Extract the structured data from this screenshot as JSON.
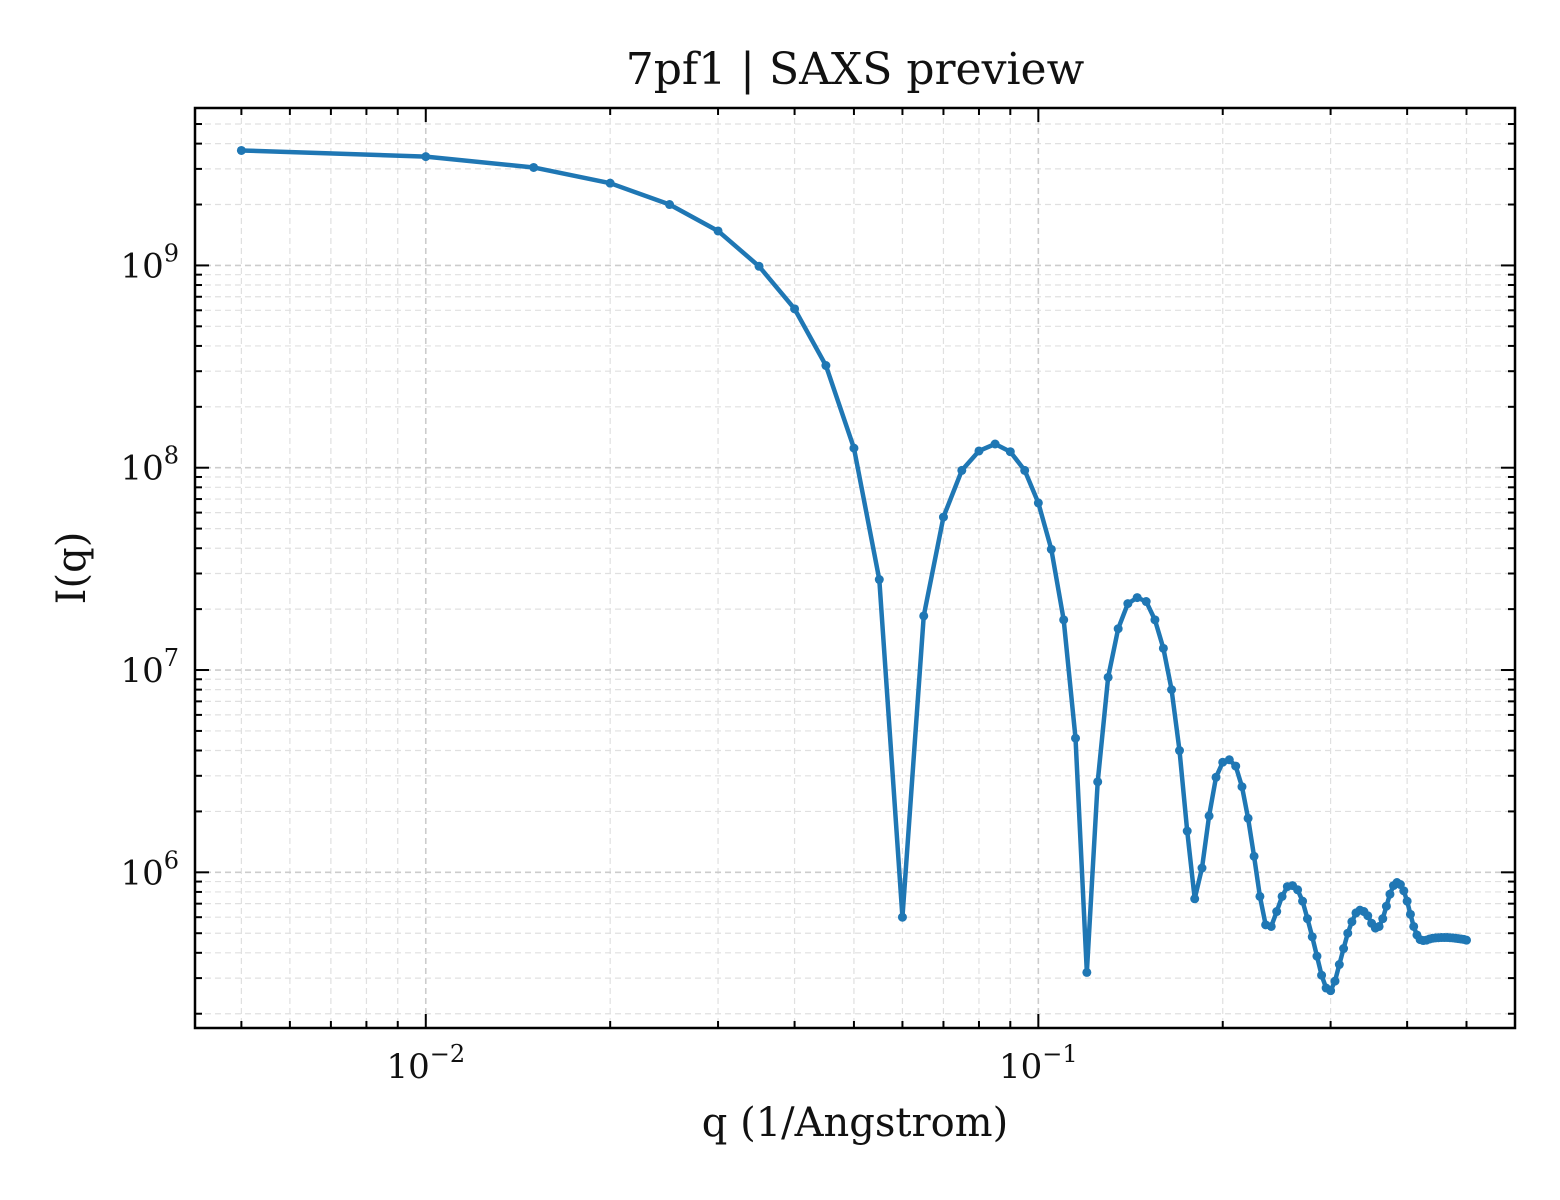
{
  "chart_data": {
    "type": "line",
    "title": "7pf1 | SAXS preview",
    "xlabel": "q (1/Angstrom)",
    "ylabel": "I(q)",
    "x_scale": "log",
    "y_scale": "log",
    "xlim": [
      0.0042,
      0.6
    ],
    "ylim": [
      170000,
      6000000000
    ],
    "grid": true,
    "color": "#1f77b4",
    "x_ticks": [
      {
        "value": 0.01,
        "base": "10",
        "exp": "−2"
      },
      {
        "value": 0.1,
        "base": "10",
        "exp": "−1"
      }
    ],
    "y_ticks": [
      {
        "value": 1000000,
        "base": "10",
        "exp": "6"
      },
      {
        "value": 10000000,
        "base": "10",
        "exp": "7"
      },
      {
        "value": 100000000,
        "base": "10",
        "exp": "8"
      },
      {
        "value": 1000000000,
        "base": "10",
        "exp": "9"
      }
    ],
    "series": [
      {
        "x": [
          0.005,
          0.01,
          0.015,
          0.02,
          0.025,
          0.03,
          0.035,
          0.04,
          0.045,
          0.05,
          0.055,
          0.06,
          0.065,
          0.07,
          0.075,
          0.08,
          0.085,
          0.09,
          0.095,
          0.1,
          0.105,
          0.11,
          0.115,
          0.12,
          0.125,
          0.13,
          0.135,
          0.14,
          0.145,
          0.15,
          0.155,
          0.16,
          0.165,
          0.17,
          0.175,
          0.18,
          0.185,
          0.19,
          0.195,
          0.2,
          0.205,
          0.21,
          0.215,
          0.22,
          0.225,
          0.23,
          0.235,
          0.24,
          0.245,
          0.25,
          0.255,
          0.26,
          0.265,
          0.27,
          0.275,
          0.28,
          0.285,
          0.29,
          0.295,
          0.3,
          0.305,
          0.31,
          0.315,
          0.32,
          0.325,
          0.33,
          0.335,
          0.34,
          0.345,
          0.35,
          0.355,
          0.36,
          0.365,
          0.37,
          0.375,
          0.38,
          0.385,
          0.39,
          0.395,
          0.4,
          0.405,
          0.41,
          0.415,
          0.42,
          0.425,
          0.43,
          0.435,
          0.44,
          0.445,
          0.45,
          0.455,
          0.46,
          0.465,
          0.47,
          0.475,
          0.48,
          0.485,
          0.49,
          0.495,
          0.5
        ],
        "y": [
          3700000000,
          3450000000,
          3050000000,
          2550000000,
          2000000000,
          1480000000,
          990000000,
          610000000,
          320000000,
          125000000,
          28000000,
          600000,
          18500000,
          57000000,
          97000000,
          121000000,
          131000000,
          120000000,
          97000000,
          67000000,
          39500000,
          17700000,
          4600000,
          320000,
          2800000,
          9200000,
          16000000,
          21300000,
          22800000,
          21800000,
          17700000,
          12800000,
          8000000,
          4000000,
          1600000,
          740000,
          1050000,
          1900000,
          2950000,
          3500000,
          3600000,
          3350000,
          2650000,
          1850000,
          1200000,
          760000,
          550000,
          540000,
          640000,
          760000,
          850000,
          860000,
          820000,
          720000,
          590000,
          480000,
          385000,
          310000,
          268000,
          260000,
          290000,
          350000,
          420000,
          500000,
          570000,
          630000,
          650000,
          640000,
          610000,
          560000,
          530000,
          540000,
          590000,
          680000,
          780000,
          860000,
          890000,
          870000,
          810000,
          720000,
          620000,
          540000,
          490000,
          465000,
          460000,
          462000,
          468000,
          472000,
          474000,
          475000,
          476000,
          476000,
          476000,
          475000,
          474000,
          472000,
          470000,
          468000,
          466000,
          462000
        ]
      }
    ]
  }
}
